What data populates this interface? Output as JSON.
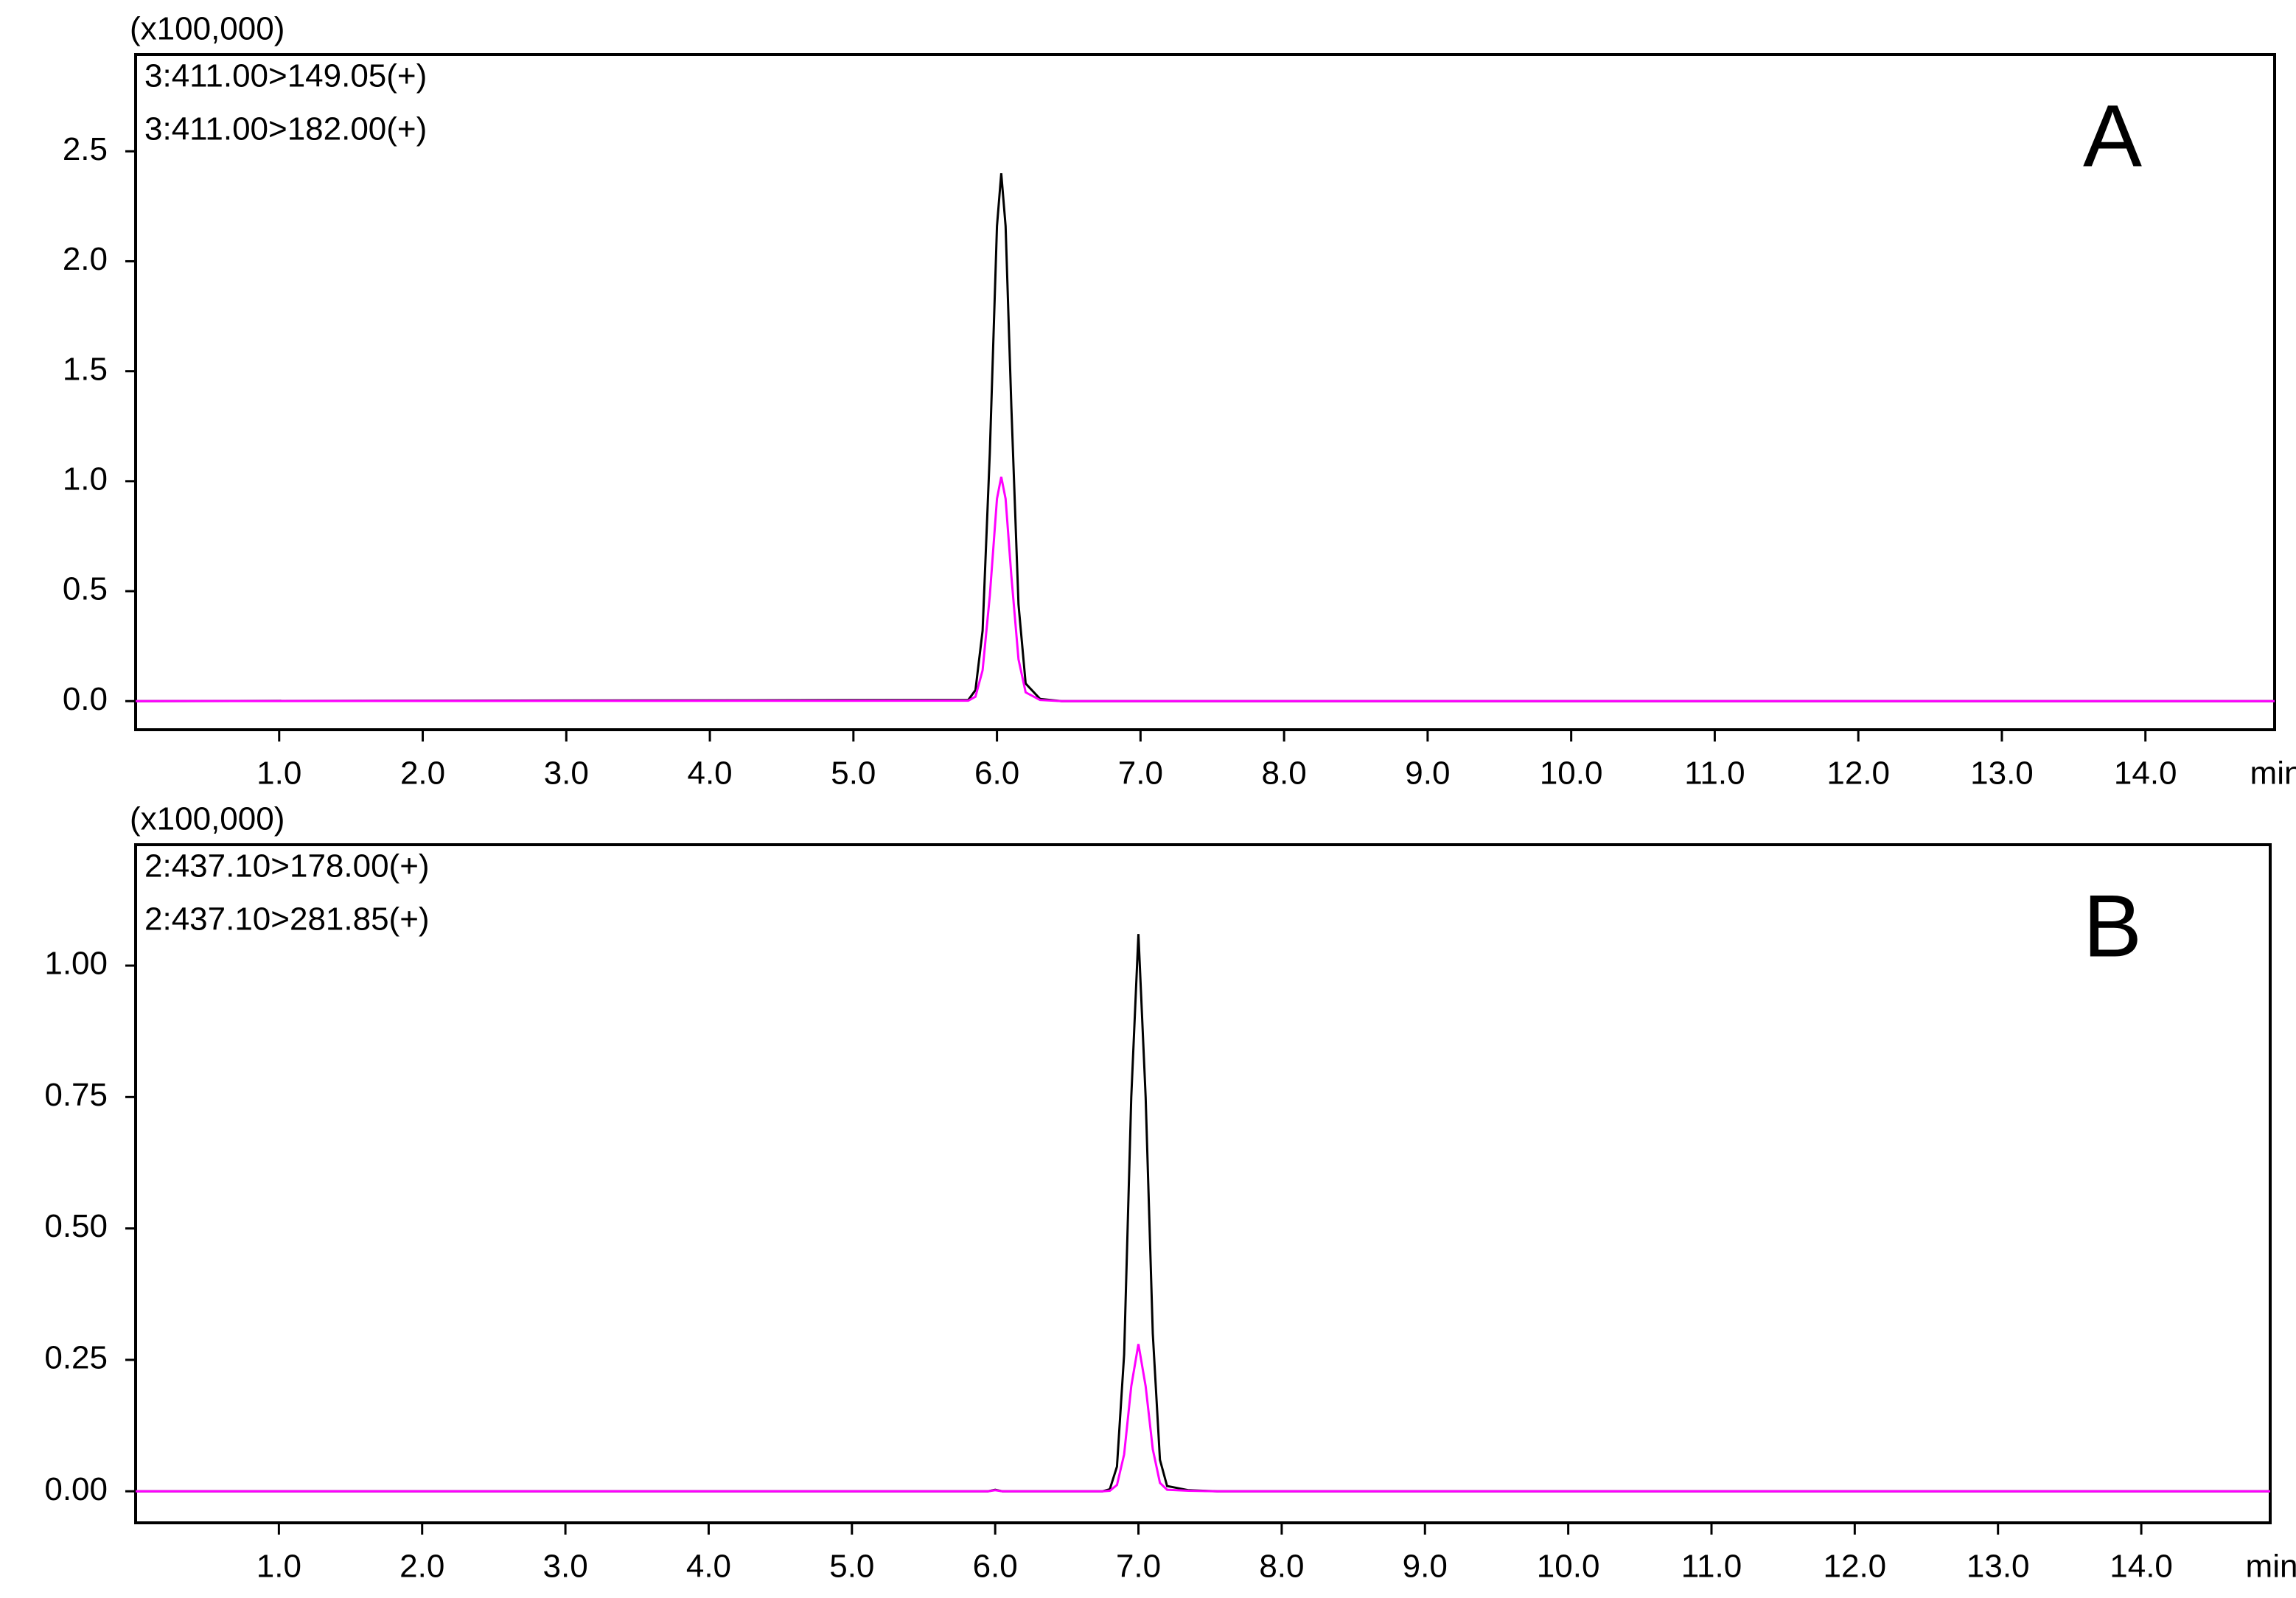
{
  "chart_data": [
    {
      "type": "line",
      "y_unit": "(x100,000)",
      "x_unit": "min",
      "annotation": "A",
      "x": [
        0,
        5.8,
        5.85,
        5.9,
        5.95,
        6.0,
        6.03,
        6.06,
        6.1,
        6.15,
        6.2,
        6.3,
        6.45,
        14.9
      ],
      "series": [
        {
          "name": "3:411.00>149.05(+)",
          "color": "#000000",
          "values": [
            0,
            0.005,
            0.05,
            0.32,
            1.13,
            2.16,
            2.4,
            2.16,
            1.34,
            0.44,
            0.08,
            0.01,
            0,
            0
          ]
        },
        {
          "name": "3:411.00>182.00(+)",
          "color": "#ff00ff",
          "values": [
            0,
            0.002,
            0.02,
            0.14,
            0.48,
            0.92,
            1.02,
            0.92,
            0.57,
            0.19,
            0.04,
            0.005,
            0,
            0
          ]
        }
      ],
      "xlim": [
        0,
        14.9
      ],
      "xticks": [
        {
          "value": 1,
          "label": "1.0"
        },
        {
          "value": 2,
          "label": "2.0"
        },
        {
          "value": 3,
          "label": "3.0"
        },
        {
          "value": 4,
          "label": "4.0"
        },
        {
          "value": 5,
          "label": "5.0"
        },
        {
          "value": 6,
          "label": "6.0"
        },
        {
          "value": 7,
          "label": "7.0"
        },
        {
          "value": 8,
          "label": "8.0"
        },
        {
          "value": 9,
          "label": "9.0"
        },
        {
          "value": 10,
          "label": "10.0"
        },
        {
          "value": 11,
          "label": "11.0"
        },
        {
          "value": 12,
          "label": "12.0"
        },
        {
          "value": 13,
          "label": "13.0"
        },
        {
          "value": 14,
          "label": "14.0"
        }
      ],
      "ylim": [
        -0.13,
        2.94
      ],
      "yticks": [
        {
          "value": 0,
          "label": "0.0"
        },
        0.5,
        {
          "value": 1,
          "label": "1.0"
        },
        1.5,
        {
          "value": 2,
          "label": "2.0"
        },
        2.5
      ]
    },
    {
      "type": "line",
      "y_unit": "(x100,000)",
      "x_unit": "min",
      "annotation": "B",
      "x": [
        0,
        5.95,
        6.0,
        6.05,
        6.75,
        6.8,
        6.85,
        6.9,
        6.95,
        7.0,
        7.05,
        7.1,
        7.15,
        7.2,
        7.35,
        7.55,
        14.9
      ],
      "series": [
        {
          "name": "2:437.10>178.00(+)",
          "color": "#000000",
          "values": [
            0,
            0,
            0.003,
            0,
            0,
            0.004,
            0.047,
            0.26,
            0.75,
            1.06,
            0.75,
            0.3,
            0.06,
            0.01,
            0.002,
            0,
            0
          ]
        },
        {
          "name": "2:437.10>281.85(+)",
          "color": "#ff00ff",
          "values": [
            0,
            0,
            0.002,
            0,
            0,
            0.001,
            0.012,
            0.07,
            0.2,
            0.28,
            0.2,
            0.08,
            0.016,
            0.003,
            0.001,
            0,
            0
          ]
        }
      ],
      "xlim": [
        0,
        14.9
      ],
      "xticks": [
        {
          "value": 1,
          "label": "1.0"
        },
        {
          "value": 2,
          "label": "2.0"
        },
        {
          "value": 3,
          "label": "3.0"
        },
        {
          "value": 4,
          "label": "4.0"
        },
        {
          "value": 5,
          "label": "5.0"
        },
        {
          "value": 6,
          "label": "6.0"
        },
        {
          "value": 7,
          "label": "7.0"
        },
        {
          "value": 8,
          "label": "8.0"
        },
        {
          "value": 9,
          "label": "9.0"
        },
        {
          "value": 10,
          "label": "10.0"
        },
        {
          "value": 11,
          "label": "11.0"
        },
        {
          "value": 12,
          "label": "12.0"
        },
        {
          "value": 13,
          "label": "13.0"
        },
        {
          "value": 14,
          "label": "14.0"
        }
      ],
      "ylim": [
        -0.06,
        1.23
      ],
      "yticks": [
        {
          "value": 0,
          "label": "0.00"
        },
        {
          "value": 0.25,
          "label": "0.25"
        },
        {
          "value": 0.5,
          "label": "0.50"
        },
        {
          "value": 0.75,
          "label": "0.75"
        },
        {
          "value": 1,
          "label": "1.00"
        }
      ]
    }
  ]
}
